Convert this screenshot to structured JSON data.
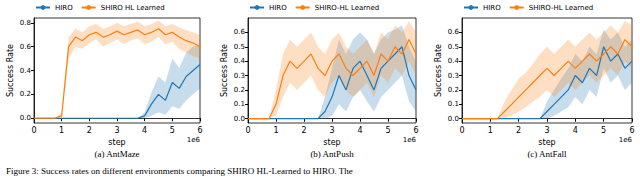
{
  "caption": "Figure 3: Success rates on different environments comparing SHIRO HL-Learned to HIRO. The",
  "chart_data": [
    {
      "type": "line",
      "title": "(a) AntMaze",
      "x_label": "step",
      "y_label": "Success Rate",
      "annotations": [
        "1e6"
      ],
      "x": [
        0,
        0.25,
        0.5,
        0.75,
        1,
        1.25,
        1.5,
        1.75,
        2,
        2.25,
        2.5,
        2.75,
        3,
        3.25,
        3.5,
        3.75,
        4,
        4.25,
        4.5,
        4.75,
        5,
        5.25,
        5.5,
        5.75,
        6
      ],
      "xlim": [
        0,
        6
      ],
      "xticks": [
        0,
        1,
        2,
        3,
        4,
        5,
        6
      ],
      "ylim": [
        -0.04,
        0.84
      ],
      "yticks": [
        {
          "value": 0,
          "label": "0.0"
        },
        {
          "value": 0.2,
          "label": "0.2"
        },
        {
          "value": 0.4,
          "label": "0.4"
        },
        {
          "value": 0.6,
          "label": "0.6"
        },
        {
          "value": 0.8,
          "label": "0.8"
        }
      ],
      "grid": false,
      "legend": "top",
      "series": [
        {
          "name": "HIRO",
          "color": "#1f77b4",
          "values": [
            0,
            0,
            0,
            0,
            0,
            0,
            0,
            0,
            0,
            0,
            0,
            0,
            0,
            0,
            0,
            0,
            0.02,
            0.12,
            0.2,
            0.15,
            0.3,
            0.25,
            0.35,
            0.4,
            0.45
          ],
          "lower": [
            0,
            0,
            0,
            0,
            0,
            0,
            0,
            0,
            0,
            0,
            0,
            0,
            0,
            0,
            0,
            0,
            0,
            0.02,
            0.05,
            0.03,
            0.1,
            0.08,
            0.15,
            0.2,
            0.25
          ],
          "upper": [
            0,
            0,
            0,
            0,
            0,
            0,
            0,
            0,
            0,
            0,
            0,
            0,
            0,
            0,
            0,
            0,
            0.05,
            0.22,
            0.35,
            0.3,
            0.5,
            0.42,
            0.55,
            0.6,
            0.62
          ]
        },
        {
          "name": "SHIRO HL Learned",
          "color": "#ff7f0e",
          "values": [
            0,
            0,
            0,
            0,
            0.02,
            0.6,
            0.68,
            0.65,
            0.7,
            0.72,
            0.68,
            0.7,
            0.73,
            0.7,
            0.72,
            0.74,
            0.7,
            0.72,
            0.75,
            0.7,
            0.72,
            0.68,
            0.65,
            0.63,
            0.6
          ],
          "lower": [
            0,
            0,
            0,
            0,
            0,
            0.5,
            0.6,
            0.58,
            0.63,
            0.66,
            0.6,
            0.63,
            0.66,
            0.62,
            0.65,
            0.67,
            0.62,
            0.64,
            0.68,
            0.62,
            0.64,
            0.58,
            0.55,
            0.52,
            0.5
          ],
          "upper": [
            0,
            0,
            0,
            0,
            0.05,
            0.68,
            0.75,
            0.72,
            0.77,
            0.79,
            0.75,
            0.77,
            0.8,
            0.77,
            0.79,
            0.81,
            0.77,
            0.79,
            0.82,
            0.77,
            0.79,
            0.76,
            0.74,
            0.72,
            0.7
          ]
        }
      ]
    },
    {
      "type": "line",
      "title": "(b) AntPush",
      "x_label": "step",
      "y_label": "Success Rate",
      "annotations": [
        "1e6"
      ],
      "x": [
        0,
        0.25,
        0.5,
        0.75,
        1,
        1.25,
        1.5,
        1.75,
        2,
        2.25,
        2.5,
        2.75,
        3,
        3.25,
        3.5,
        3.75,
        4,
        4.25,
        4.5,
        4.75,
        5,
        5.25,
        5.5,
        5.75,
        6
      ],
      "xlim": [
        0,
        6
      ],
      "xticks": [
        0,
        1,
        2,
        3,
        4,
        5,
        6
      ],
      "ylim": [
        -0.03,
        0.7
      ],
      "yticks": [
        {
          "value": 0,
          "label": "0.0"
        },
        0.1,
        0.2,
        0.3,
        0.4,
        0.5,
        0.6
      ],
      "grid": false,
      "legend": "top",
      "series": [
        {
          "name": "HIRO",
          "color": "#1f77b4",
          "values": [
            0,
            0,
            0,
            0,
            0,
            0,
            0,
            0,
            0,
            0,
            0,
            0.05,
            0.15,
            0.3,
            0.2,
            0.35,
            0.4,
            0.3,
            0.2,
            0.35,
            0.4,
            0.45,
            0.5,
            0.3,
            0.2
          ],
          "lower": [
            0,
            0,
            0,
            0,
            0,
            0,
            0,
            0,
            0,
            0,
            0,
            0,
            0.02,
            0.1,
            0.05,
            0.15,
            0.2,
            0.12,
            0.05,
            0.15,
            0.2,
            0.25,
            0.3,
            0.12,
            0.05
          ],
          "upper": [
            0,
            0,
            0,
            0,
            0,
            0,
            0,
            0,
            0,
            0,
            0,
            0.15,
            0.35,
            0.55,
            0.45,
            0.55,
            0.6,
            0.55,
            0.45,
            0.55,
            0.6,
            0.62,
            0.65,
            0.5,
            0.4
          ]
        },
        {
          "name": "SHIRO-HL Learned",
          "color": "#ff7f0e",
          "values": [
            0,
            0,
            0,
            0,
            0.1,
            0.3,
            0.4,
            0.35,
            0.4,
            0.45,
            0.35,
            0.3,
            0.4,
            0.45,
            0.35,
            0.3,
            0.35,
            0.4,
            0.3,
            0.45,
            0.4,
            0.5,
            0.45,
            0.55,
            0.45
          ],
          "lower": [
            0,
            0,
            0,
            0,
            0.02,
            0.15,
            0.25,
            0.2,
            0.25,
            0.3,
            0.2,
            0.15,
            0.25,
            0.3,
            0.2,
            0.15,
            0.2,
            0.25,
            0.15,
            0.3,
            0.25,
            0.35,
            0.3,
            0.4,
            0.3
          ],
          "upper": [
            0,
            0,
            0,
            0,
            0.2,
            0.45,
            0.55,
            0.5,
            0.55,
            0.6,
            0.5,
            0.45,
            0.55,
            0.6,
            0.5,
            0.45,
            0.5,
            0.55,
            0.45,
            0.6,
            0.55,
            0.65,
            0.6,
            0.68,
            0.6
          ]
        }
      ]
    },
    {
      "type": "line",
      "title": "(c) AntFall",
      "x_label": "step",
      "y_label": "Success Rate",
      "annotations": [
        "1e6"
      ],
      "x": [
        0,
        0.25,
        0.5,
        0.75,
        1,
        1.25,
        1.5,
        1.75,
        2,
        2.25,
        2.5,
        2.75,
        3,
        3.25,
        3.5,
        3.75,
        4,
        4.25,
        4.5,
        4.75,
        5,
        5.25,
        5.5,
        5.75,
        6
      ],
      "xlim": [
        0,
        6
      ],
      "xticks": [
        0,
        1,
        2,
        3,
        4,
        5,
        6
      ],
      "ylim": [
        -0.03,
        0.7
      ],
      "yticks": [
        {
          "value": 0,
          "label": "0.0"
        },
        0.1,
        0.2,
        0.3,
        0.4,
        0.5,
        0.6
      ],
      "grid": false,
      "legend": "top",
      "series": [
        {
          "name": "HIRO",
          "color": "#1f77b4",
          "values": [
            0,
            0,
            0,
            0,
            0,
            0,
            0,
            0,
            0,
            0,
            0,
            0,
            0.05,
            0.1,
            0.15,
            0.2,
            0.3,
            0.25,
            0.35,
            0.3,
            0.5,
            0.4,
            0.45,
            0.35,
            0.4
          ],
          "lower": [
            0,
            0,
            0,
            0,
            0,
            0,
            0,
            0,
            0,
            0,
            0,
            0,
            0,
            0.02,
            0.05,
            0.08,
            0.15,
            0.1,
            0.2,
            0.15,
            0.35,
            0.25,
            0.3,
            0.2,
            0.25
          ],
          "upper": [
            0,
            0,
            0,
            0,
            0,
            0,
            0,
            0,
            0,
            0,
            0,
            0,
            0.12,
            0.2,
            0.28,
            0.35,
            0.45,
            0.4,
            0.5,
            0.45,
            0.62,
            0.55,
            0.6,
            0.5,
            0.55
          ]
        },
        {
          "name": "SHIRO-HL Learned",
          "color": "#ff7f0e",
          "values": [
            0,
            0,
            0,
            0,
            0,
            0,
            0.05,
            0.1,
            0.15,
            0.2,
            0.25,
            0.3,
            0.35,
            0.3,
            0.35,
            0.4,
            0.35,
            0.4,
            0.45,
            0.4,
            0.45,
            0.5,
            0.45,
            0.55,
            0.5
          ],
          "lower": [
            0,
            0,
            0,
            0,
            0,
            0,
            0,
            0.02,
            0.05,
            0.08,
            0.12,
            0.15,
            0.2,
            0.15,
            0.2,
            0.25,
            0.2,
            0.25,
            0.3,
            0.25,
            0.3,
            0.35,
            0.3,
            0.4,
            0.35
          ],
          "upper": [
            0,
            0,
            0,
            0,
            0,
            0,
            0.12,
            0.2,
            0.28,
            0.32,
            0.38,
            0.45,
            0.5,
            0.45,
            0.5,
            0.55,
            0.5,
            0.55,
            0.6,
            0.55,
            0.6,
            0.65,
            0.6,
            0.68,
            0.65
          ]
        }
      ]
    }
  ]
}
